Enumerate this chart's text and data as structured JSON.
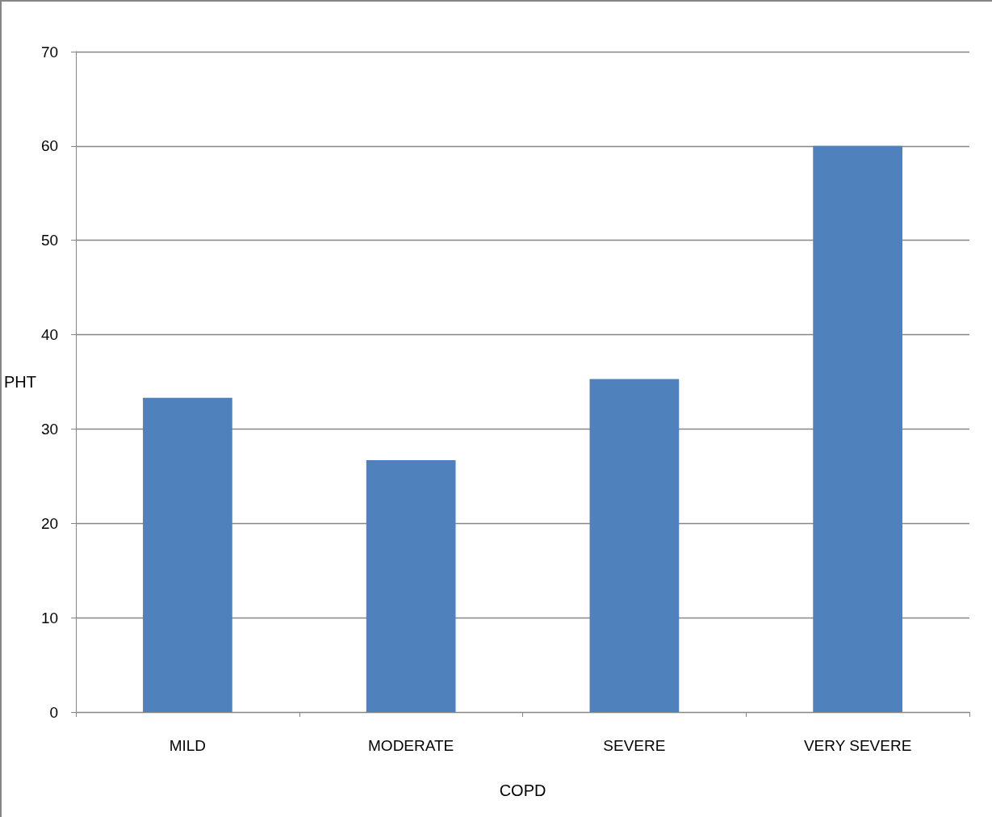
{
  "chart_data": {
    "type": "bar",
    "xlabel": "COPD",
    "ylabel": "PHT",
    "categories": [
      "MILD",
      "MODERATE",
      "SEVERE",
      "VERY SEVERE"
    ],
    "values": [
      33.3,
      26.7,
      35.3,
      60.0
    ],
    "color": "#4f81bd",
    "ylim": [
      0,
      70
    ],
    "yticks": [
      0,
      10,
      20,
      30,
      40,
      50,
      60,
      70
    ],
    "grid": "y"
  }
}
